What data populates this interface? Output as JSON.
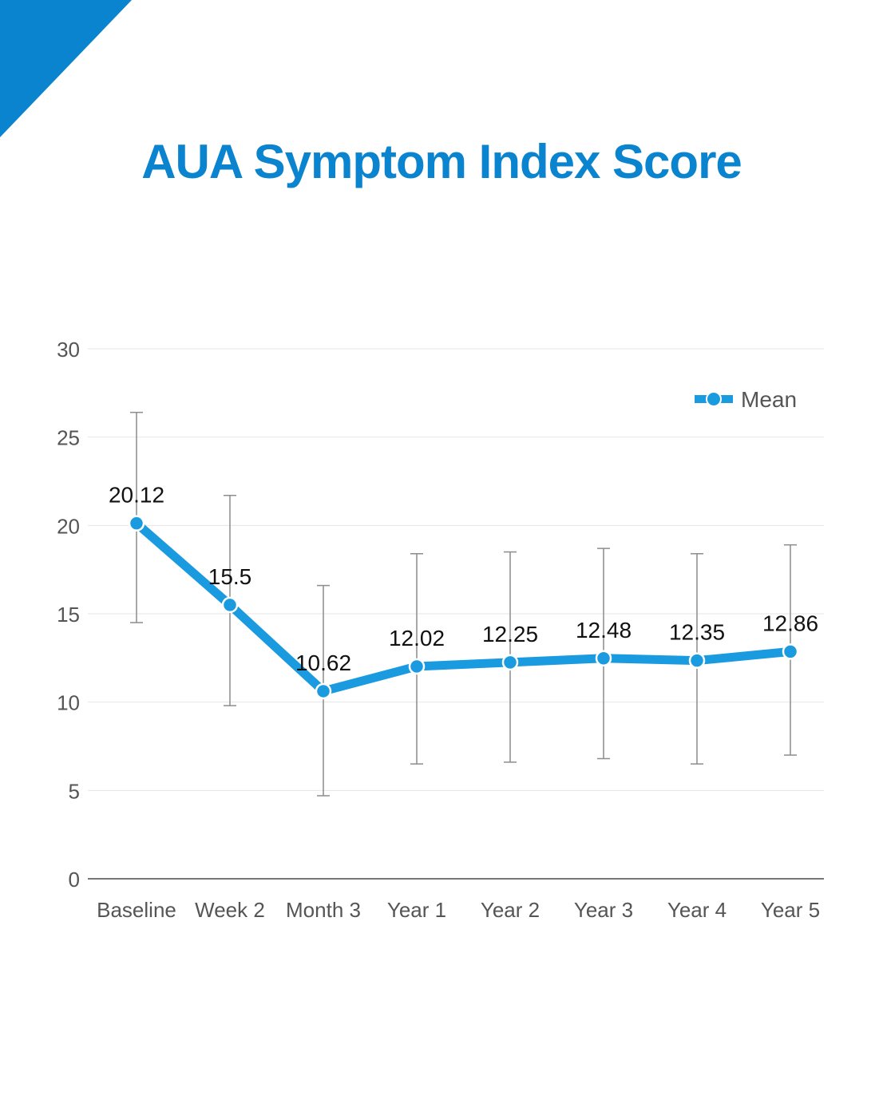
{
  "title": "AUA Symptom Index Score",
  "colors": {
    "accent": "#0a84cf",
    "series": "#1a9be0",
    "grid": "#e6e6e6",
    "axis": "#777777",
    "error_bar": "#8c8c8c"
  },
  "chart_data": {
    "type": "line",
    "title": "AUA Symptom Index Score",
    "xlabel": "",
    "ylabel": "",
    "categories": [
      "Baseline",
      "Week 2",
      "Month 3",
      "Year 1",
      "Year 2",
      "Year 3",
      "Year 4",
      "Year 5"
    ],
    "ylim": [
      0,
      30
    ],
    "yticks": [
      0,
      5,
      10,
      15,
      20,
      25,
      30
    ],
    "grid": true,
    "legend": "top-right",
    "series": [
      {
        "name": "Mean",
        "values": [
          20.12,
          15.5,
          10.62,
          12.02,
          12.25,
          12.48,
          12.35,
          12.86
        ],
        "labels": [
          "20.12",
          "15.5",
          "10.62",
          "12.02",
          "12.25",
          "12.48",
          "12.35",
          "12.86"
        ],
        "error_low": [
          14.5,
          9.8,
          4.7,
          6.5,
          6.6,
          6.8,
          6.5,
          7.0
        ],
        "error_high": [
          26.4,
          21.7,
          16.6,
          18.4,
          18.5,
          18.7,
          18.4,
          18.9
        ]
      }
    ]
  }
}
